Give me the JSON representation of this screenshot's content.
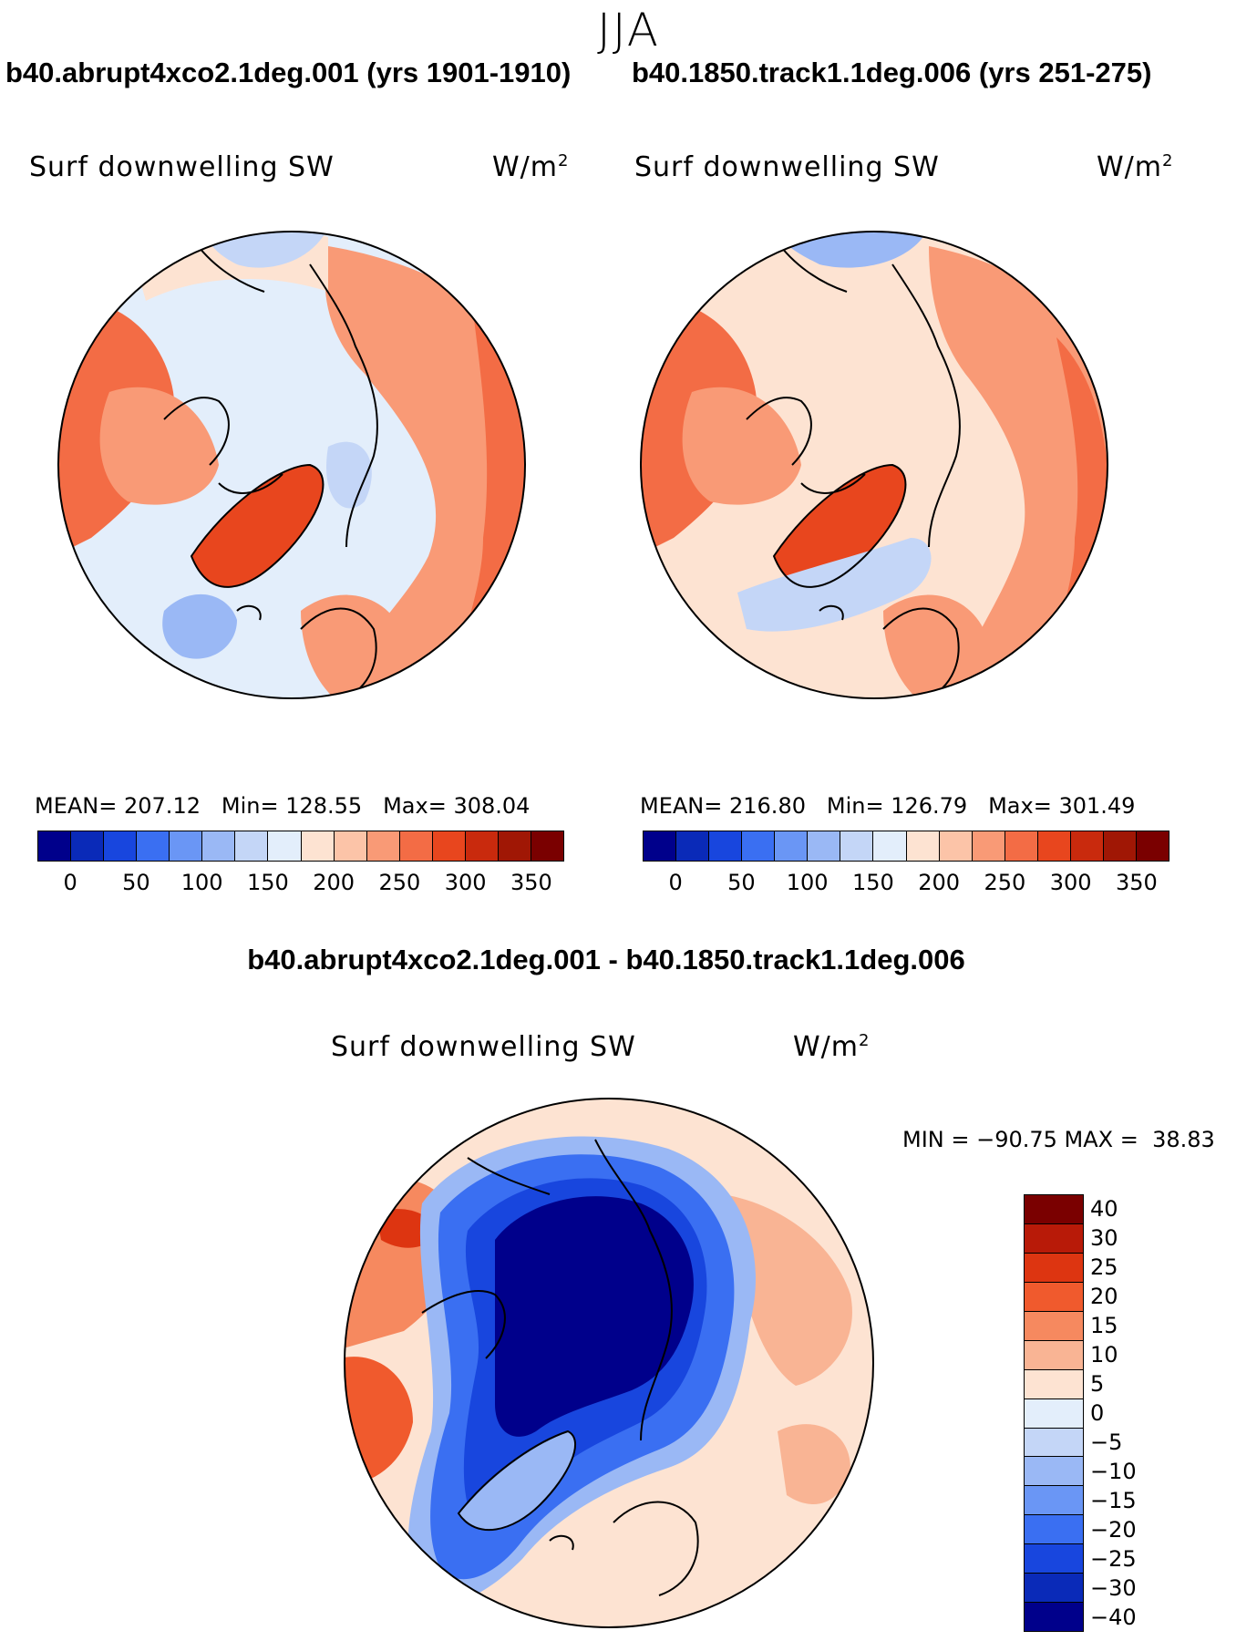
{
  "figure": {
    "season": "JJA",
    "diff_title": "b40.abrupt4xco2.1deg.001 - b40.1850.track1.1deg.006"
  },
  "panels": [
    {
      "title": "b40.abrupt4xco2.1deg.001 (yrs 1901-1910)",
      "variable": "Surf downwelling SW",
      "units": "W/m",
      "units_exp": "2",
      "stats": {
        "mean_label": "MEAN=",
        "mean": "207.12",
        "min_label": "Min=",
        "min": "128.55",
        "max_label": "Max=",
        "max": "308.04"
      }
    },
    {
      "title": "b40.1850.track1.1deg.006 (yrs 251-275)",
      "variable": "Surf downwelling SW",
      "units": "W/m",
      "units_exp": "2",
      "stats": {
        "mean_label": "MEAN=",
        "mean": "216.80",
        "min_label": "Min=",
        "min": "126.79",
        "max_label": "Max=",
        "max": "301.49"
      }
    }
  ],
  "diff_panel": {
    "variable": "Surf downwelling SW",
    "units": "W/m",
    "units_exp": "2",
    "minmax": "MIN = −90.75 MAX =  38.83"
  },
  "colorbar_abs": {
    "ticks": [
      "0",
      "50",
      "100",
      "150",
      "200",
      "250",
      "300",
      "350"
    ],
    "colors": [
      "#00008b",
      "#0a2ab8",
      "#1846de",
      "#3a6ff2",
      "#6a96f5",
      "#9ab8f5",
      "#c4d6f7",
      "#e3eefb",
      "#fde3d2",
      "#fcc4a8",
      "#f99a76",
      "#f36c45",
      "#e8461e",
      "#c92a0d",
      "#a01705",
      "#7a0000"
    ]
  },
  "colorbar_diff": {
    "labels": [
      "40",
      "30",
      "25",
      "20",
      "15",
      "10",
      "5",
      "0",
      "−5",
      "−10",
      "−15",
      "−20",
      "−25",
      "−30",
      "−40"
    ],
    "colors": [
      "#7a0000",
      "#b81a08",
      "#dd3511",
      "#f05a2d",
      "#f6895f",
      "#f9b494",
      "#fde3d2",
      "#e3eefb",
      "#c4d6f7",
      "#9ab8f5",
      "#6a96f5",
      "#3a6ff2",
      "#1846de",
      "#0a2ab8",
      "#00008b"
    ]
  },
  "map_colors": {
    "ocean_light": "#e3eefb",
    "blue_light": "#c4d6f7",
    "blue_mid": "#9ab8f5",
    "peach": "#fde3d2",
    "salmon": "#f99a76",
    "orange": "#f36c45",
    "red": "#e8461e",
    "navy": "#00008b",
    "deep_blue": "#0a2ab8"
  }
}
